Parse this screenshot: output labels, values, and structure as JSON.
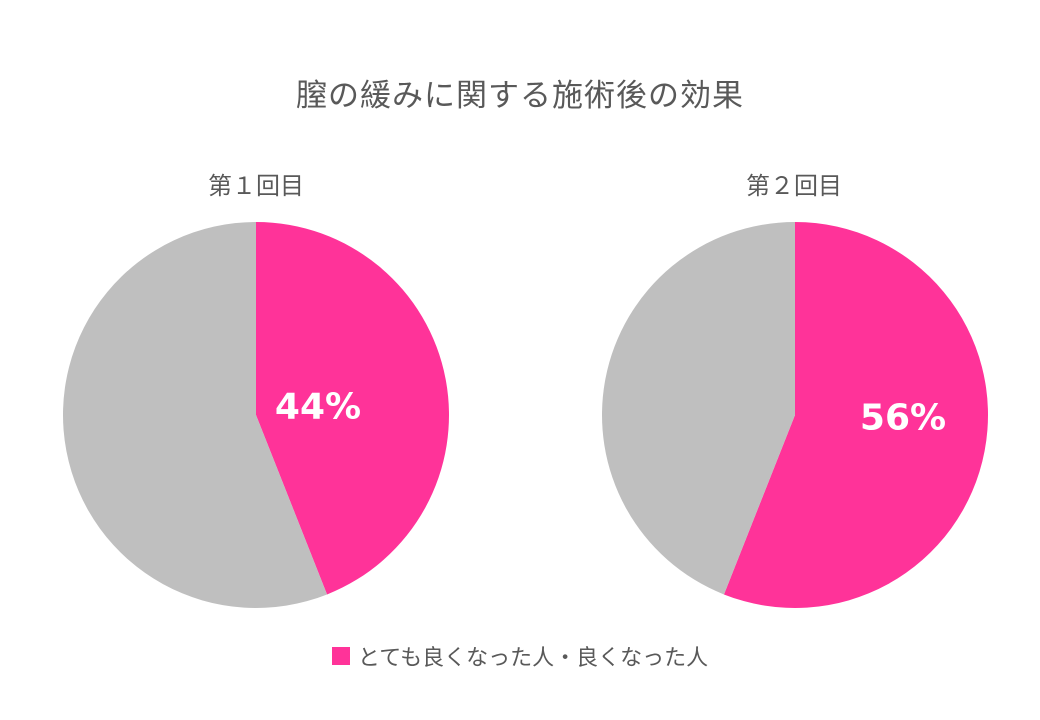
{
  "title": "膣の緩みに関する施術後の効果",
  "colors": {
    "highlight": "#FF3399",
    "rest": "#BFBFBF"
  },
  "legend": {
    "label": "とても良くなった人・良くなった人"
  },
  "chart_data": [
    {
      "type": "pie",
      "title": "第１回目",
      "slices": [
        {
          "name": "とても良くなった人・良くなった人",
          "value": 44,
          "label": "44%"
        },
        {
          "name": "",
          "value": 56,
          "label": ""
        }
      ]
    },
    {
      "type": "pie",
      "title": "第２回目",
      "slices": [
        {
          "name": "とても良くなった人・良くなった人",
          "value": 56,
          "label": "56%"
        },
        {
          "name": "",
          "value": 44,
          "label": ""
        }
      ]
    }
  ]
}
